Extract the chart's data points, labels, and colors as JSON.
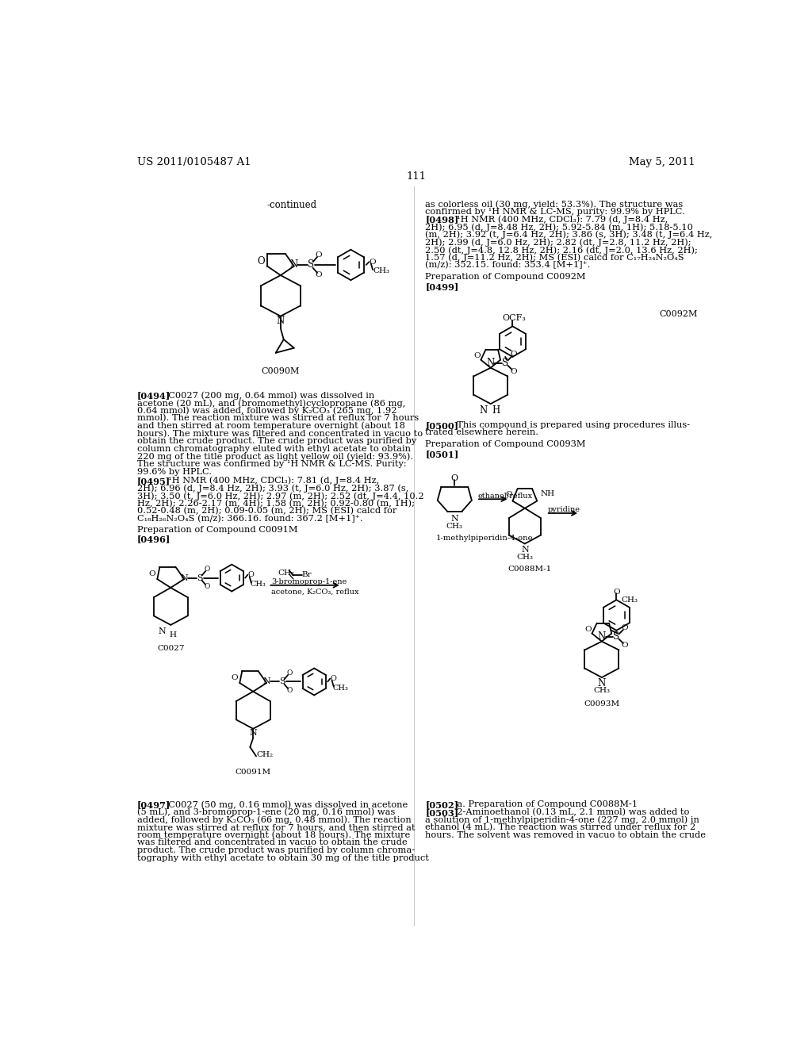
{
  "bg_color": "#ffffff",
  "header_left": "US 2011/0105487 A1",
  "header_right": "May 5, 2011",
  "page_number": "111"
}
